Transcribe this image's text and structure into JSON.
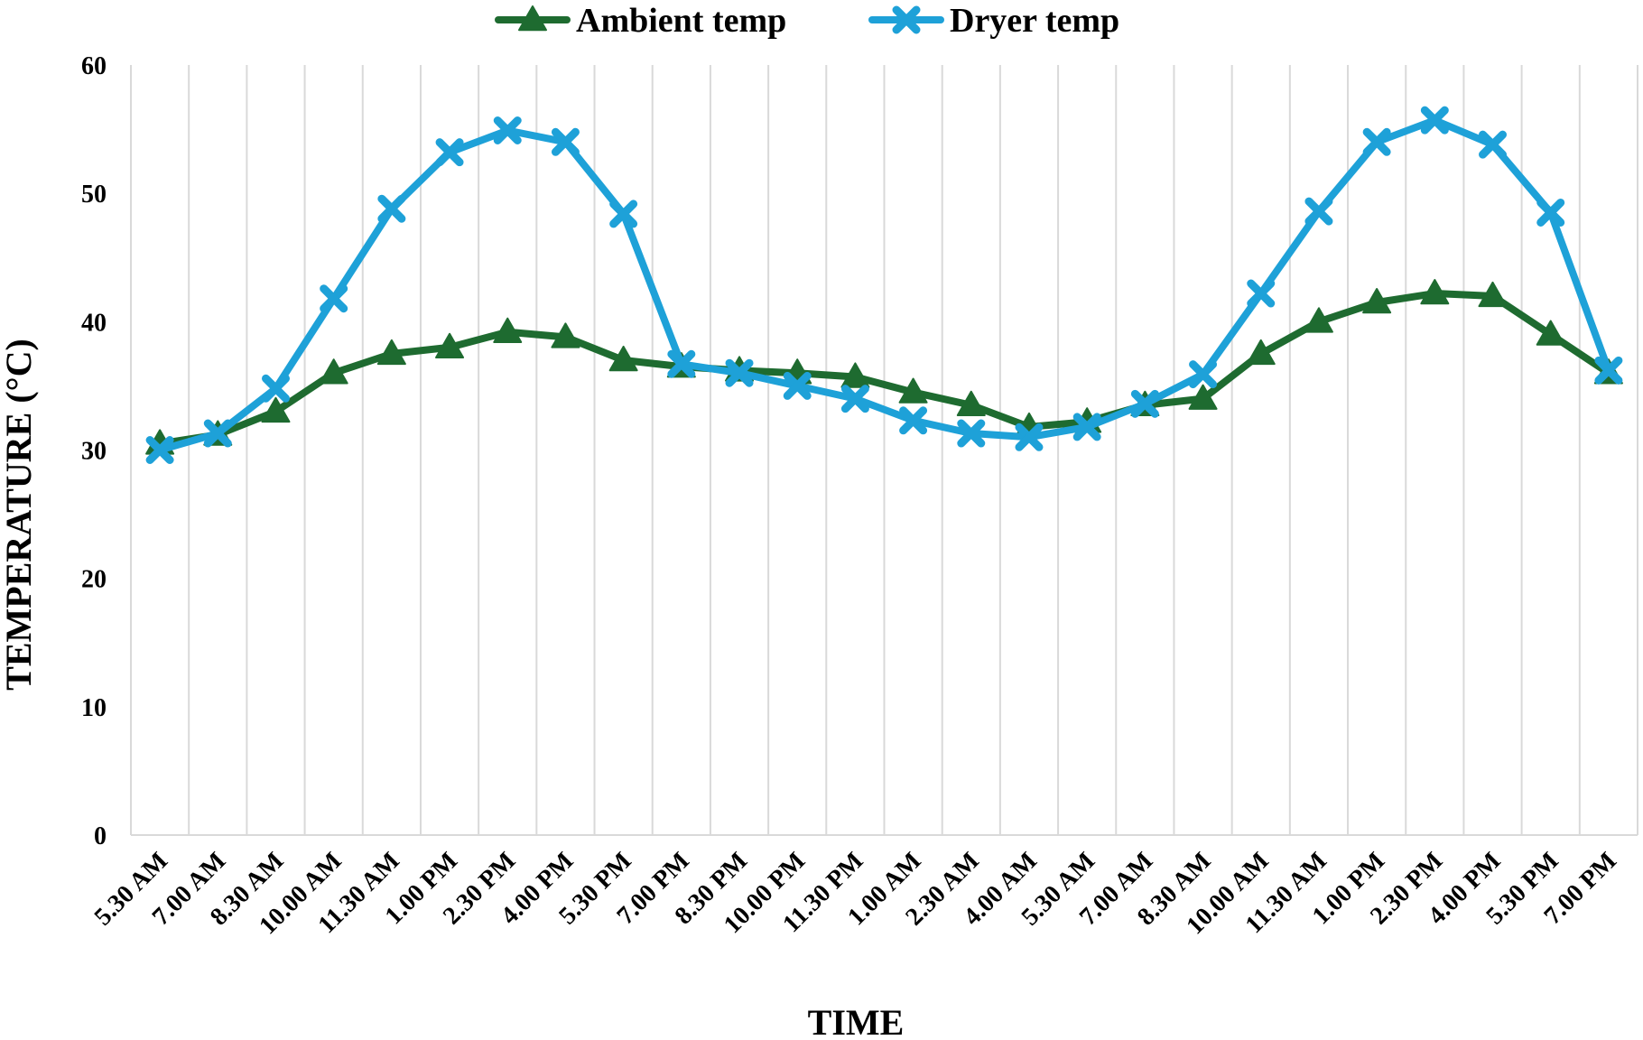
{
  "chart_data": {
    "type": "line",
    "title": "",
    "xlabel": "TIME",
    "ylabel": "TEMPERATURE (°C)",
    "ylim": [
      0,
      60
    ],
    "yticks": [
      0,
      10,
      20,
      30,
      40,
      50,
      60
    ],
    "grid": "vertical",
    "legend_position": "top-center",
    "categories": [
      "5.30 AM",
      "7.00 AM",
      "8.30 AM",
      "10.00 AM",
      "11.30 AM",
      "1.00 PM",
      "2.30 PM",
      "4.00 PM",
      "5.30 PM",
      "7.00 PM",
      "8.30 PM",
      "10.00 PM",
      "11.30 PM",
      "1.00 AM",
      "2.30 AM",
      "4.00 AM",
      "5.30 AM",
      "7.00 AM",
      "8.30 AM",
      "10.00 AM",
      "11.30 AM",
      "1.00 PM",
      "2.30 PM",
      "4.00 PM",
      "5.30 PM",
      "7.00 PM"
    ],
    "series": [
      {
        "name": "Ambient temp",
        "color": "#1e6b30",
        "marker": "triangle",
        "values": [
          30.5,
          31.2,
          33.0,
          36.0,
          37.5,
          38.0,
          39.2,
          38.8,
          37.0,
          36.5,
          36.2,
          36.0,
          35.7,
          34.5,
          33.5,
          31.8,
          32.2,
          33.5,
          34.0,
          37.5,
          40.0,
          41.5,
          42.2,
          42.0,
          39.0,
          36.0
        ]
      },
      {
        "name": "Dryer temp",
        "color": "#1ea1d8",
        "marker": "x",
        "values": [
          30.0,
          31.3,
          34.8,
          41.8,
          48.8,
          53.2,
          54.9,
          54.0,
          48.4,
          36.7,
          36.0,
          35.0,
          34.0,
          32.3,
          31.3,
          31.0,
          31.8,
          33.6,
          35.9,
          42.2,
          48.6,
          54.0,
          55.7,
          53.8,
          48.5,
          36.2
        ]
      }
    ]
  }
}
